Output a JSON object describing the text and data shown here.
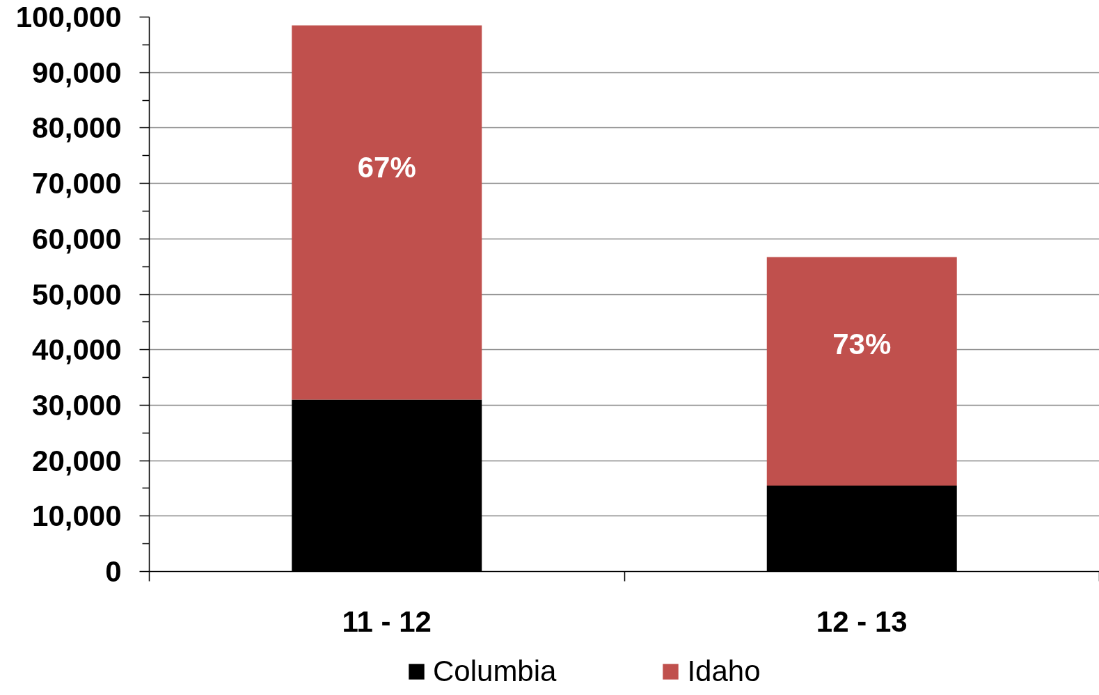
{
  "chart_data": {
    "type": "bar",
    "stacked": true,
    "categories": [
      "11 - 12",
      "12 - 13"
    ],
    "series": [
      {
        "name": "Columbia",
        "color": "#000000",
        "values": [
          31000,
          15500
        ]
      },
      {
        "name": "Idaho",
        "color": "#c0504d",
        "values": [
          67500,
          41200
        ]
      }
    ],
    "ylim": [
      0,
      100000
    ],
    "yticks": [
      0,
      {
        "value": 5000,
        "label": null
      },
      {
        "value": 10000,
        "label": "10,000"
      },
      {
        "value": 15000,
        "label": null
      },
      {
        "value": 20000,
        "label": "20,000"
      },
      {
        "value": 25000,
        "label": null
      },
      {
        "value": 30000,
        "label": "30,000"
      },
      {
        "value": 35000,
        "label": null
      },
      {
        "value": 40000,
        "label": "40,000"
      },
      {
        "value": 45000,
        "label": null
      },
      {
        "value": 50000,
        "label": "50,000"
      },
      {
        "value": 55000,
        "label": null
      },
      {
        "value": 60000,
        "label": "60,000"
      },
      {
        "value": 65000,
        "label": null
      },
      {
        "value": 70000,
        "label": "70,000"
      },
      {
        "value": 75000,
        "label": null
      },
      {
        "value": 80000,
        "label": "80,000"
      },
      {
        "value": 85000,
        "label": null
      },
      {
        "value": 90000,
        "label": "90,000"
      },
      {
        "value": 95000,
        "label": null
      },
      {
        "value": 100000,
        "label": "100,000"
      }
    ],
    "annotations": [
      "67%",
      "73%"
    ],
    "grid": "y",
    "legend": "bottom"
  }
}
